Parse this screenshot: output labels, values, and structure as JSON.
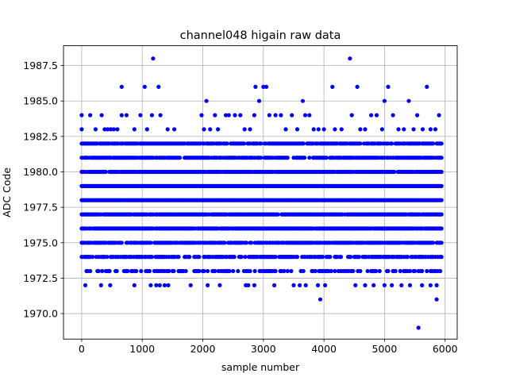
{
  "chart_data": {
    "type": "scatter",
    "title": "channel048 higain raw data",
    "xlabel": "sample number",
    "ylabel": "ADC Code",
    "xlim": [
      -300,
      6200
    ],
    "ylim": [
      1968.2,
      1988.9
    ],
    "grid": true,
    "marker_color": "#0000ff",
    "x_ticks": [
      0,
      1000,
      2000,
      3000,
      4000,
      5000,
      6000
    ],
    "x_tick_labels": [
      "0",
      "1000",
      "2000",
      "3000",
      "4000",
      "5000",
      "6000"
    ],
    "y_ticks": [
      1970.0,
      1972.5,
      1975.0,
      1977.5,
      1980.0,
      1982.5,
      1985.0,
      1987.5
    ],
    "y_tick_labels": [
      "1970.0",
      "1972.5",
      "1975.0",
      "1977.5",
      "1980.0",
      "1982.5",
      "1985.0",
      "1987.5"
    ],
    "sample_range": [
      0,
      5940
    ],
    "dense_levels": [
      1973,
      1974,
      1975,
      1976,
      1977,
      1978,
      1979,
      1980,
      1981,
      1982
    ],
    "level_density": {
      "1982": 0.85,
      "1981": 0.8,
      "1980": 0.95,
      "1979": 1.0,
      "1978": 1.0,
      "1977": 0.97,
      "1976": 0.95,
      "1975": 0.85,
      "1974": 0.7,
      "1973": 0.45
    },
    "sparse_points": [
      {
        "x": 0,
        "y": 1984
      },
      {
        "x": 0,
        "y": 1983
      },
      {
        "x": 140,
        "y": 1984
      },
      {
        "x": 230,
        "y": 1983
      },
      {
        "x": 330,
        "y": 1984
      },
      {
        "x": 380,
        "y": 1983
      },
      {
        "x": 430,
        "y": 1983
      },
      {
        "x": 480,
        "y": 1983
      },
      {
        "x": 530,
        "y": 1983
      },
      {
        "x": 590,
        "y": 1983
      },
      {
        "x": 660,
        "y": 1986
      },
      {
        "x": 660,
        "y": 1984
      },
      {
        "x": 740,
        "y": 1984
      },
      {
        "x": 870,
        "y": 1983
      },
      {
        "x": 970,
        "y": 1984
      },
      {
        "x": 1040,
        "y": 1986
      },
      {
        "x": 1080,
        "y": 1983
      },
      {
        "x": 1180,
        "y": 1988
      },
      {
        "x": 1160,
        "y": 1984
      },
      {
        "x": 1270,
        "y": 1986
      },
      {
        "x": 1300,
        "y": 1984
      },
      {
        "x": 1420,
        "y": 1983
      },
      {
        "x": 1530,
        "y": 1983
      },
      {
        "x": 1980,
        "y": 1984
      },
      {
        "x": 2020,
        "y": 1983
      },
      {
        "x": 2060,
        "y": 1985
      },
      {
        "x": 2120,
        "y": 1983
      },
      {
        "x": 2200,
        "y": 1984
      },
      {
        "x": 2250,
        "y": 1983
      },
      {
        "x": 2380,
        "y": 1984
      },
      {
        "x": 2430,
        "y": 1984
      },
      {
        "x": 2530,
        "y": 1984
      },
      {
        "x": 2620,
        "y": 1984
      },
      {
        "x": 2690,
        "y": 1983
      },
      {
        "x": 2780,
        "y": 1983
      },
      {
        "x": 2850,
        "y": 1984
      },
      {
        "x": 2870,
        "y": 1986
      },
      {
        "x": 2930,
        "y": 1985
      },
      {
        "x": 3000,
        "y": 1986
      },
      {
        "x": 3050,
        "y": 1986
      },
      {
        "x": 3100,
        "y": 1984
      },
      {
        "x": 3200,
        "y": 1984
      },
      {
        "x": 3290,
        "y": 1984
      },
      {
        "x": 3370,
        "y": 1983
      },
      {
        "x": 3470,
        "y": 1984
      },
      {
        "x": 3560,
        "y": 1983
      },
      {
        "x": 3650,
        "y": 1985
      },
      {
        "x": 3690,
        "y": 1984
      },
      {
        "x": 3760,
        "y": 1984
      },
      {
        "x": 3830,
        "y": 1983
      },
      {
        "x": 3910,
        "y": 1983
      },
      {
        "x": 4000,
        "y": 1983
      },
      {
        "x": 4140,
        "y": 1986
      },
      {
        "x": 4180,
        "y": 1983
      },
      {
        "x": 4290,
        "y": 1983
      },
      {
        "x": 4430,
        "y": 1988
      },
      {
        "x": 4460,
        "y": 1984
      },
      {
        "x": 4550,
        "y": 1986
      },
      {
        "x": 4600,
        "y": 1983
      },
      {
        "x": 4680,
        "y": 1983
      },
      {
        "x": 4780,
        "y": 1984
      },
      {
        "x": 4870,
        "y": 1984
      },
      {
        "x": 4960,
        "y": 1983
      },
      {
        "x": 5000,
        "y": 1985
      },
      {
        "x": 5060,
        "y": 1986
      },
      {
        "x": 5140,
        "y": 1984
      },
      {
        "x": 5230,
        "y": 1983
      },
      {
        "x": 5320,
        "y": 1983
      },
      {
        "x": 5400,
        "y": 1985
      },
      {
        "x": 5480,
        "y": 1983
      },
      {
        "x": 5540,
        "y": 1984
      },
      {
        "x": 5630,
        "y": 1983
      },
      {
        "x": 5700,
        "y": 1986
      },
      {
        "x": 5760,
        "y": 1983
      },
      {
        "x": 5840,
        "y": 1983
      },
      {
        "x": 5900,
        "y": 1984
      },
      {
        "x": 60,
        "y": 1972
      },
      {
        "x": 320,
        "y": 1972
      },
      {
        "x": 470,
        "y": 1972
      },
      {
        "x": 870,
        "y": 1972
      },
      {
        "x": 1140,
        "y": 1972
      },
      {
        "x": 1230,
        "y": 1972
      },
      {
        "x": 1290,
        "y": 1972
      },
      {
        "x": 1370,
        "y": 1972
      },
      {
        "x": 1430,
        "y": 1972
      },
      {
        "x": 1800,
        "y": 1972
      },
      {
        "x": 2080,
        "y": 1972
      },
      {
        "x": 2280,
        "y": 1972
      },
      {
        "x": 2710,
        "y": 1972
      },
      {
        "x": 2750,
        "y": 1972
      },
      {
        "x": 2850,
        "y": 1972
      },
      {
        "x": 3180,
        "y": 1972
      },
      {
        "x": 3500,
        "y": 1972
      },
      {
        "x": 3600,
        "y": 1972
      },
      {
        "x": 3700,
        "y": 1972
      },
      {
        "x": 3900,
        "y": 1972
      },
      {
        "x": 4020,
        "y": 1972
      },
      {
        "x": 4520,
        "y": 1972
      },
      {
        "x": 4680,
        "y": 1972
      },
      {
        "x": 4820,
        "y": 1972
      },
      {
        "x": 5000,
        "y": 1972
      },
      {
        "x": 5120,
        "y": 1972
      },
      {
        "x": 5280,
        "y": 1972
      },
      {
        "x": 5420,
        "y": 1972
      },
      {
        "x": 5620,
        "y": 1972
      },
      {
        "x": 5760,
        "y": 1972
      },
      {
        "x": 5860,
        "y": 1972
      },
      {
        "x": 3940,
        "y": 1971
      },
      {
        "x": 5860,
        "y": 1971
      },
      {
        "x": 5560,
        "y": 1969
      }
    ]
  }
}
